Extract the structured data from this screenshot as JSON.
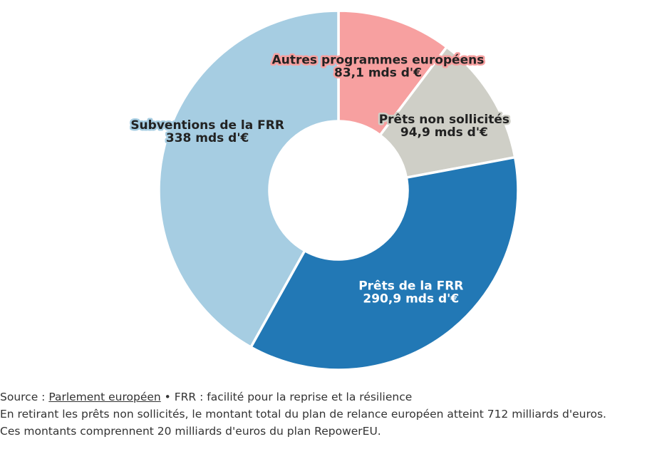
{
  "chart_data": {
    "type": "pie",
    "variant": "donut",
    "unit": "mds d'€",
    "slices": [
      {
        "label": "Autres programmes européens",
        "value": 83.1,
        "value_label": "83,1 mds d'€",
        "color": "#f7a0a0",
        "label_color": "#222222",
        "halo": "#f7a0a0"
      },
      {
        "label": "Prêts non sollicités",
        "value": 94.9,
        "value_label": "94,9 mds d'€",
        "color": "#cfcfc7",
        "label_color": "#222222",
        "halo": "#cfcfc7"
      },
      {
        "label": "Prêts de la FRR",
        "value": 290.9,
        "value_label": "290,9 mds d'€",
        "color": "#2278b5",
        "label_color": "#ffffff",
        "halo": "#2278b5"
      },
      {
        "label": "Subventions de la FRR",
        "value": 338,
        "value_label": "338 mds d'€",
        "color": "#a6cde2",
        "label_color": "#222222",
        "halo": "#a6cde2"
      }
    ]
  },
  "footer": {
    "source_prefix": "Source : ",
    "source_link": "Parlement européen",
    "source_suffix": " • FRR : facilité pour la reprise et la résilience",
    "note1": "En retirant les prêts non sollicités, le montant total du plan de relance européen atteint 712 milliards d'euros.",
    "note2": "Ces montants comprennent 20 milliards d'euros du plan RepowerEU."
  }
}
